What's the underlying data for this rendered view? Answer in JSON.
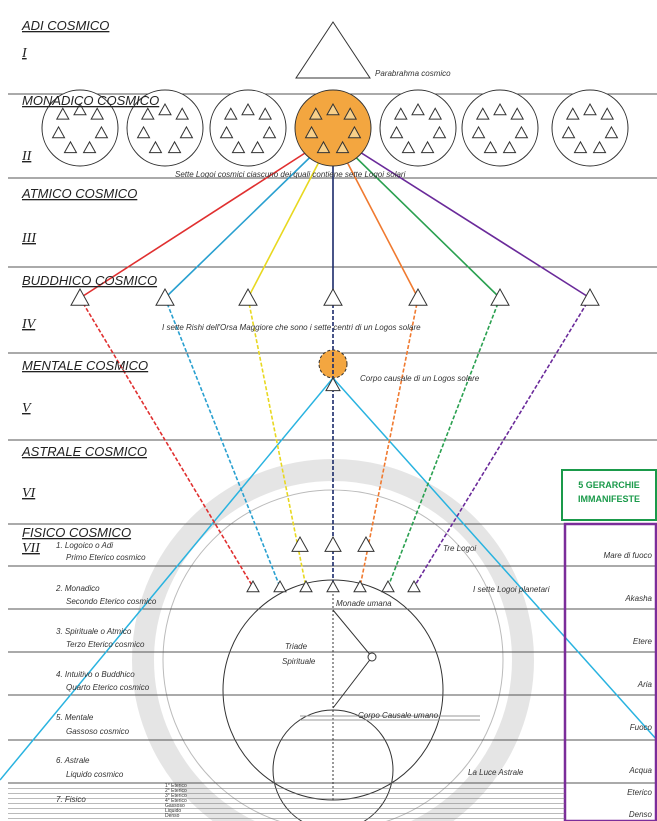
{
  "planes": [
    {
      "name": "ADI COSMICO",
      "numeral": "I"
    },
    {
      "name": "MONADICO COSMICO",
      "numeral": "II"
    },
    {
      "name": "ATMICO COSMICO",
      "numeral": "III"
    },
    {
      "name": "BUDDHICO COSMICO",
      "numeral": "IV"
    },
    {
      "name": "MENTALE COSMICO",
      "numeral": "V"
    },
    {
      "name": "ASTRALE COSMICO",
      "numeral": "VI"
    },
    {
      "name": "FISICO COSMICO",
      "numeral": "VII"
    }
  ],
  "annotations": {
    "parabrahma": "Parabrahma cosmico",
    "logoi_cosmici": "Sette Logoi cosmici ciascuno dei quali contiene sette Logoi solari",
    "rishi": "I sette Rishi dell'Orsa Maggiore che sono i sette centri di un Logos solare",
    "corpo_causale_solare": "Corpo causale di un Logos solare",
    "tre_logoi": "Tre Logoi",
    "logoi_planetari": "I sette Logoi planetari",
    "monade": "Monade umana",
    "triade": "Triade",
    "spirituale": "Spirituale",
    "corpo_causale_umano": "Corpo Causale umano",
    "luce_astrale": "La Luce Astrale"
  },
  "subplanes": [
    {
      "name": "1. Logoico o Adi",
      "sub": "Primo Eterico cosmico",
      "right": "Mare di fuoco"
    },
    {
      "name": "2. Monadico",
      "sub": "Secondo Eterico cosmico",
      "right": "Akasha"
    },
    {
      "name": "3. Spirituale o Atmico",
      "sub": "Terzo Eterico cosmico",
      "right": "Etere"
    },
    {
      "name": "4. Intuitivo o Buddhico",
      "sub": "Quarto Eterico cosmico",
      "right": "Aria"
    },
    {
      "name": "5. Mentale",
      "sub": "Gassoso cosmico",
      "right": "Fuoco"
    },
    {
      "name": "6. Astrale",
      "sub": "Liquido cosmico",
      "right": "Acqua"
    }
  ],
  "fisico": {
    "name": "7. Fisico",
    "levels": [
      "1° Eterico",
      "2° Eterico",
      "3° Eterico",
      "4° Eterico",
      "Gassoso",
      "Liquido",
      "Denso"
    ],
    "right": [
      "Eterico",
      "Denso"
    ]
  },
  "gerarchie": {
    "line1": "5 GERARCHIE",
    "line2": "IMMANIFESTE"
  }
}
